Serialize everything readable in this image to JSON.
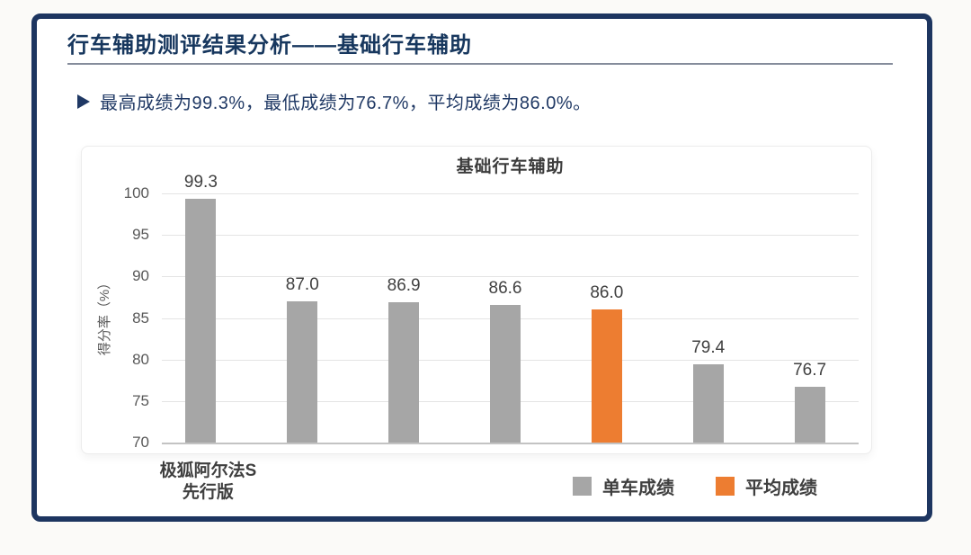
{
  "page": {
    "title": "行车辅助测评结果分析——基础行车辅助"
  },
  "summary": {
    "text": "最高成绩为99.3%，最低成绩为76.7%，平均成绩为86.0%。"
  },
  "icons": {
    "bullet_arrow": "right-arrowhead-icon"
  },
  "colors": {
    "frame_navy": "#1d3560",
    "title_navy": "#17375e",
    "body_navy": "#1f3864",
    "bar_gray": "#a6a6a6",
    "bar_orange": "#ed7d31",
    "value_label_gray": "#404040",
    "tick_gray": "#595959"
  },
  "chart_data": {
    "type": "bar",
    "title": "基础行车辅助",
    "xlabel": "",
    "ylabel": "得分率（%）",
    "ylim": [
      70,
      100
    ],
    "yticks": [
      100,
      95,
      90,
      85,
      80,
      75,
      70
    ],
    "grid": true,
    "categories": [
      "极狐阿尔法S\n先行版",
      "",
      "",
      "",
      "",
      "",
      ""
    ],
    "series": [
      {
        "name": "单车成绩",
        "color": "#a6a6a6",
        "values": [
          99.3,
          87.0,
          86.9,
          86.6,
          null,
          79.4,
          76.7
        ]
      },
      {
        "name": "平均成绩",
        "color": "#ed7d31",
        "values": [
          null,
          null,
          null,
          null,
          86.0,
          null,
          null
        ]
      }
    ],
    "bar_labels": [
      "99.3",
      "87.0",
      "86.9",
      "86.6",
      "86.0",
      "79.4",
      "76.7"
    ],
    "legend": [
      {
        "label": "单车成绩",
        "color": "#a6a6a6"
      },
      {
        "label": "平均成绩",
        "color": "#ed7d31"
      }
    ],
    "legend_position": "bottom-right"
  }
}
